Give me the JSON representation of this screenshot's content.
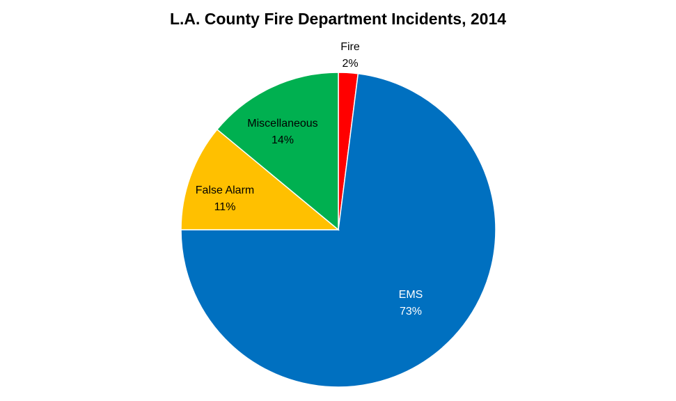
{
  "chart_data": {
    "type": "pie",
    "title": "L.A. County Fire Department Incidents, 2014",
    "slices": [
      {
        "name": "Fire",
        "value": 2,
        "label": "2%",
        "color": "#FF0000",
        "label_color": "#000000"
      },
      {
        "name": "EMS",
        "value": 73,
        "label": "73%",
        "color": "#0070C0",
        "label_color": "#FFFFFF"
      },
      {
        "name": "False Alarm",
        "value": 11,
        "label": "11%",
        "color": "#FFC000",
        "label_color": "#000000"
      },
      {
        "name": "Miscellaneous",
        "value": 14,
        "label": "14%",
        "color": "#00B050",
        "label_color": "#000000"
      }
    ],
    "legend": "none"
  }
}
